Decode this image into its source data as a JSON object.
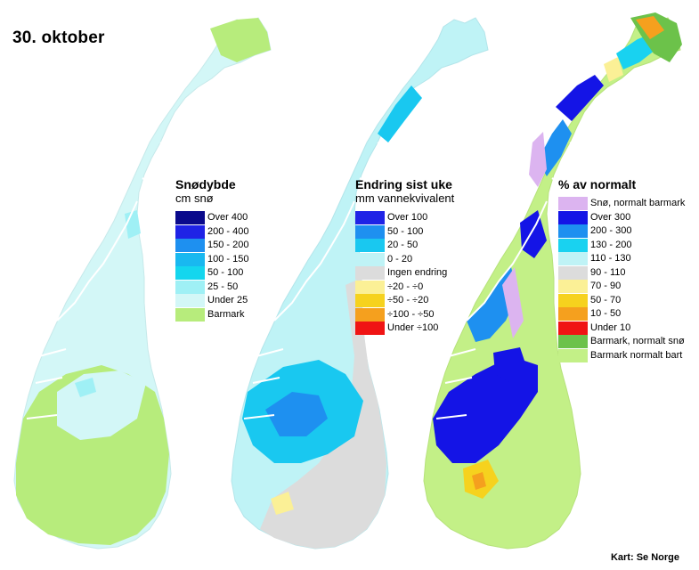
{
  "title": "30. oktober",
  "credit": "Kart: Se Norge",
  "maps": [
    {
      "id": "snodybde",
      "legend_title": "Snødybde",
      "legend_subtitle": "cm snø",
      "classes": [
        {
          "label": "Over 400",
          "color": "#0a0a8c"
        },
        {
          "label": "200 - 400",
          "color": "#1f23e6"
        },
        {
          "label": "150 - 200",
          "color": "#1e90f0"
        },
        {
          "label": "100 - 150",
          "color": "#19b8f0"
        },
        {
          "label": "50 - 100",
          "color": "#14d6ee"
        },
        {
          "label": "25 - 50",
          "color": "#9ff0f5"
        },
        {
          "label": "Under 25",
          "color": "#d3f7f7"
        },
        {
          "label": "Barmark",
          "color": "#b7ec7c"
        }
      ]
    },
    {
      "id": "endring",
      "legend_title": "Endring sist uke",
      "legend_subtitle": "mm vannekvivalent",
      "classes": [
        {
          "label": "Over 100",
          "color": "#1f23e6"
        },
        {
          "label": "50 - 100",
          "color": "#1e90f0"
        },
        {
          "label": "20 - 50",
          "color": "#19c8f0"
        },
        {
          "label": "0 - 20",
          "color": "#bff3f6"
        },
        {
          "label": "Ingen endring",
          "color": "#dcdcdc"
        },
        {
          "label": "÷20 - ÷0",
          "color": "#fbf096"
        },
        {
          "label": "÷50 - ÷20",
          "color": "#f6d21e"
        },
        {
          "label": "÷100 - ÷50",
          "color": "#f5a01e"
        },
        {
          "label": "Under ÷100",
          "color": "#f01414"
        }
      ]
    },
    {
      "id": "prosent",
      "legend_title": "% av normalt",
      "legend_subtitle": "",
      "classes": [
        {
          "label": "Snø, normalt barmark",
          "color": "#dcb4f0"
        },
        {
          "label": "Over 300",
          "color": "#1414e6"
        },
        {
          "label": "200 - 300",
          "color": "#1e90f0"
        },
        {
          "label": "130 - 200",
          "color": "#19d2f0"
        },
        {
          "label": "110 - 130",
          "color": "#bff3f6"
        },
        {
          "label": "90 - 110",
          "color": "#dcdcdc"
        },
        {
          "label": "70 - 90",
          "color": "#fbf096"
        },
        {
          "label": "50 - 70",
          "color": "#f6d21e"
        },
        {
          "label": "10 - 50",
          "color": "#f5a01e"
        },
        {
          "label": "Under 10",
          "color": "#f01414"
        },
        {
          "label": "Barmark, normalt snø",
          "color": "#6cc24a"
        },
        {
          "label": "Barmark normalt bart",
          "color": "#c3f087"
        }
      ]
    }
  ]
}
